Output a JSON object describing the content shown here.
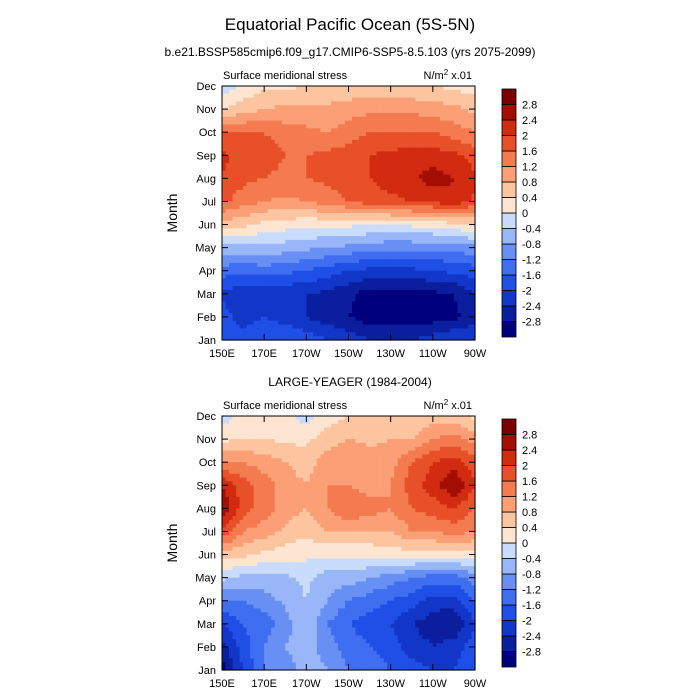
{
  "title": "Equatorial Pacific Ocean (5S-5N)",
  "colorscale": {
    "levels": [
      -2.8,
      -2.4,
      -2,
      -1.6,
      -1.2,
      -0.8,
      -0.4,
      0,
      0.4,
      0.8,
      1.2,
      1.6,
      2,
      2.4,
      2.8
    ],
    "level_labels": [
      "-2.8",
      "-2.4",
      "-2",
      "-1.6",
      "-1.2",
      "-0.8",
      "-0.4",
      "0",
      "0.4",
      "0.8",
      "1.2",
      "1.6",
      "2",
      "2.4",
      "2.8"
    ],
    "colors": [
      "#00007f",
      "#0a1e9e",
      "#1237c8",
      "#1f4fe6",
      "#3f6ff0",
      "#6890f4",
      "#98b6f8",
      "#c9dcfb",
      "#fde5d2",
      "#fcc5a0",
      "#fa9f76",
      "#f47a50",
      "#e8502a",
      "#d12b10",
      "#a30f05",
      "#7a0000"
    ]
  },
  "chart_data": [
    {
      "type": "heatmap",
      "title": "b.e21.BSSP585cmip6.f09_g17.CMIP6-SSP5-8.5.103 (yrs 2075-2099)",
      "left_label": "Surface meridional stress",
      "units_label": "N/m",
      "units_sup": "2",
      "units_suffix": " x.01",
      "ylabel": "Month",
      "xlabel": "",
      "x_ticks": [
        "150E",
        "170E",
        "170W",
        "150W",
        "130W",
        "110W",
        "90W"
      ],
      "x_tick_values": [
        150,
        170,
        190,
        210,
        230,
        250,
        270
      ],
      "y_ticks": [
        "Jan",
        "Feb",
        "Mar",
        "Apr",
        "May",
        "Jun",
        "Jul",
        "Aug",
        "Sep",
        "Oct",
        "Nov",
        "Dec"
      ],
      "xlim": [
        150,
        270
      ],
      "ylim": [
        1,
        12
      ],
      "x": [
        150,
        160,
        170,
        180,
        190,
        200,
        210,
        220,
        230,
        240,
        250,
        260,
        270
      ],
      "values": [
        [
          -1.6,
          -1.8,
          -1.6,
          -1.6,
          -1.8,
          -2.0,
          -2.2,
          -2.4,
          -2.4,
          -2.4,
          -2.2,
          -2.0,
          -2.0
        ],
        [
          -1.8,
          -2.2,
          -2.0,
          -2.2,
          -2.4,
          -2.6,
          -2.8,
          -3.0,
          -3.0,
          -3.0,
          -3.0,
          -2.9,
          -2.6
        ],
        [
          -2.1,
          -2.3,
          -2.2,
          -2.3,
          -2.4,
          -2.5,
          -2.7,
          -3.0,
          -3.0,
          -3.0,
          -2.9,
          -2.8,
          -2.4
        ],
        [
          -1.4,
          -1.5,
          -1.4,
          -1.5,
          -1.6,
          -1.8,
          -2.0,
          -2.1,
          -2.2,
          -2.1,
          -2.0,
          -1.9,
          -1.8
        ],
        [
          -0.5,
          -0.5,
          -0.5,
          -0.6,
          -0.7,
          -0.8,
          -0.9,
          -1.0,
          -1.1,
          -1.1,
          -1.1,
          -1.1,
          -0.9
        ],
        [
          0.6,
          0.5,
          0.3,
          0.2,
          0.1,
          0.1,
          0.1,
          0.0,
          0.0,
          0.1,
          0.1,
          0.3,
          0.4
        ],
        [
          1.7,
          1.4,
          1.2,
          1.1,
          1.2,
          1.4,
          1.6,
          1.8,
          1.9,
          2.0,
          2.1,
          2.3,
          1.9
        ],
        [
          2.0,
          1.7,
          1.6,
          1.5,
          1.6,
          1.7,
          1.8,
          2.0,
          2.2,
          2.3,
          2.6,
          2.4,
          2.1
        ],
        [
          2.1,
          1.8,
          1.8,
          1.6,
          1.6,
          1.7,
          1.8,
          2.0,
          2.1,
          2.2,
          2.2,
          2.1,
          1.8
        ],
        [
          1.6,
          1.6,
          1.6,
          1.4,
          1.3,
          1.2,
          1.4,
          1.6,
          1.6,
          1.6,
          1.6,
          1.4,
          1.2
        ],
        [
          0.4,
          0.6,
          0.8,
          0.9,
          0.9,
          0.9,
          1.0,
          1.1,
          1.1,
          1.1,
          1.0,
          0.9,
          0.7
        ],
        [
          -0.3,
          0.1,
          0.3,
          0.3,
          0.4,
          0.4,
          0.5,
          0.5,
          0.4,
          0.4,
          0.4,
          0.3,
          0.2
        ]
      ]
    },
    {
      "type": "heatmap",
      "title": "LARGE-YEAGER (1984-2004)",
      "left_label": "Surface meridional stress",
      "units_label": "N/m",
      "units_sup": "2",
      "units_suffix": " x.01",
      "ylabel": "Month",
      "xlabel": "",
      "x_ticks": [
        "150E",
        "170E",
        "170W",
        "150W",
        "130W",
        "110W",
        "90W"
      ],
      "x_tick_values": [
        150,
        170,
        190,
        210,
        230,
        250,
        270
      ],
      "y_ticks": [
        "Jan",
        "Feb",
        "Mar",
        "Apr",
        "May",
        "Jun",
        "Jul",
        "Aug",
        "Sep",
        "Oct",
        "Nov",
        "Dec"
      ],
      "xlim": [
        150,
        270
      ],
      "ylim": [
        1,
        12
      ],
      "x": [
        150,
        160,
        170,
        180,
        190,
        200,
        210,
        220,
        230,
        240,
        250,
        260,
        270
      ],
      "values": [
        [
          -3.0,
          -2.0,
          -1.2,
          -1.0,
          -0.6,
          -0.8,
          -1.2,
          -1.4,
          -1.6,
          -1.8,
          -2.0,
          -2.0,
          -1.6
        ],
        [
          -2.6,
          -1.8,
          -1.2,
          -0.8,
          -0.6,
          -1.0,
          -1.4,
          -1.6,
          -1.8,
          -2.2,
          -2.4,
          -2.2,
          -1.8
        ],
        [
          -2.0,
          -1.6,
          -1.4,
          -1.0,
          -0.4,
          -1.2,
          -1.6,
          -1.8,
          -2.0,
          -2.4,
          -2.6,
          -2.8,
          -2.0
        ],
        [
          -1.2,
          -1.2,
          -1.0,
          -0.7,
          -0.4,
          -0.8,
          -1.2,
          -1.4,
          -1.6,
          -1.8,
          -2.2,
          -2.2,
          -1.6
        ],
        [
          -0.3,
          -0.5,
          -0.5,
          -0.5,
          -0.3,
          -0.6,
          -0.6,
          -0.8,
          -1.0,
          -1.2,
          -1.4,
          -1.4,
          -1.0
        ],
        [
          0.6,
          0.5,
          0.3,
          0.2,
          0.1,
          0.1,
          0.1,
          0.1,
          0.2,
          0.2,
          0.2,
          0.2,
          0.2
        ],
        [
          2.0,
          1.2,
          1.0,
          0.7,
          0.5,
          0.8,
          0.8,
          0.8,
          0.8,
          1.2,
          1.2,
          1.4,
          1.2
        ],
        [
          2.8,
          1.8,
          1.4,
          1.0,
          0.8,
          1.2,
          1.6,
          1.4,
          1.2,
          1.6,
          1.8,
          2.0,
          1.6
        ],
        [
          2.4,
          1.8,
          1.4,
          1.0,
          0.8,
          1.2,
          1.2,
          1.0,
          1.2,
          1.8,
          2.2,
          2.8,
          2.0
        ],
        [
          1.2,
          1.2,
          1.0,
          0.8,
          0.6,
          1.0,
          1.2,
          1.0,
          1.0,
          1.6,
          2.0,
          2.2,
          1.8
        ],
        [
          0.3,
          0.4,
          0.4,
          0.3,
          0.3,
          0.6,
          0.8,
          0.7,
          0.8,
          0.8,
          1.2,
          1.4,
          1.0
        ],
        [
          -0.2,
          0.1,
          0.2,
          0.1,
          -0.2,
          0.2,
          0.4,
          0.4,
          0.4,
          0.4,
          0.6,
          0.6,
          0.3
        ]
      ]
    }
  ]
}
